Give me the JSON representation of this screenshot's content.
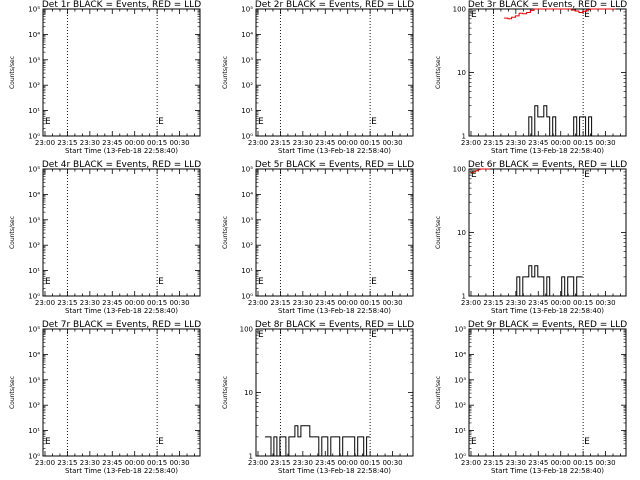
{
  "figure": {
    "x_ticks": [
      "23:00",
      "23:15",
      "23:30",
      "23:45",
      "00:00",
      "00:15",
      "00:30"
    ],
    "x_label": "Start Time (13-Feb-18 22:58:40)",
    "y_label": "Counts/sec",
    "log_ticks_wide": [
      "10⁰",
      "10¹",
      "10²",
      "10³",
      "10⁴",
      "10⁵"
    ],
    "log_ticks_narrow": [
      "1",
      "10",
      "100"
    ],
    "marker_char": "E",
    "colors": {
      "events": "#000000",
      "lld": "#e00000",
      "axes": "#000000"
    }
  },
  "chart_data": [
    {
      "type": "line",
      "title": "Det 1r BLACK = Events, RED = LLD",
      "yscale": "log",
      "ylim": [
        1,
        100000
      ],
      "series": []
    },
    {
      "type": "line",
      "title": "Det 2r BLACK = Events, RED = LLD",
      "yscale": "log",
      "ylim": [
        1,
        100000
      ],
      "series": []
    },
    {
      "type": "line",
      "title": "Det 3r BLACK = Events, RED = LLD",
      "yscale": "log",
      "ylim": [
        1,
        100
      ],
      "series": [
        {
          "color": "#e00000",
          "x_min": [
            23.5,
            26,
            28.5,
            31,
            33.5,
            36,
            38.5,
            41,
            43.5,
            46,
            48.5,
            51,
            53.5,
            56,
            58.5,
            61,
            63.5,
            66,
            68.5,
            71,
            73.5,
            76,
            78.5,
            81,
            83.5,
            86,
            88.5,
            91,
            93.5,
            96
          ],
          "y": [
            72,
            70,
            74,
            78,
            86,
            84,
            88,
            95,
            100,
            100,
            100,
            100,
            100,
            100,
            100,
            100,
            100,
            100,
            96,
            93,
            88,
            92,
            98,
            100,
            100,
            100,
            100,
            100,
            100,
            100
          ]
        },
        {
          "color": "#000000",
          "x_min": [
            38,
            40,
            42,
            44,
            46,
            48,
            50,
            52,
            54,
            56,
            58,
            60,
            62,
            64,
            66,
            68,
            70,
            72,
            74,
            76,
            78,
            80,
            82
          ],
          "y": [
            1,
            2,
            1,
            3,
            2,
            2,
            3,
            2,
            1,
            2,
            1,
            1,
            1,
            1,
            1,
            1,
            2,
            1,
            2,
            2,
            1,
            2,
            1
          ]
        }
      ]
    },
    {
      "type": "line",
      "title": "Det 4r BLACK = Events, RED = LLD",
      "yscale": "log",
      "ylim": [
        1,
        100000
      ],
      "series": []
    },
    {
      "type": "line",
      "title": "Det 5r BLACK = Events, RED = LLD",
      "yscale": "log",
      "ylim": [
        1,
        100000
      ],
      "series": []
    },
    {
      "type": "line",
      "title": "Det 6r BLACK = Events, RED = LLD",
      "yscale": "log",
      "ylim": [
        1,
        100
      ],
      "series": [
        {
          "color": "#e00000",
          "x_min": [
            1.5,
            3,
            4.5,
            6,
            7.5,
            9,
            10.5,
            12
          ],
          "y": [
            88,
            90,
            94,
            98,
            100,
            100,
            100,
            100
          ]
        },
        {
          "color": "#000000",
          "x_min": [
            30,
            32,
            34,
            36,
            38,
            40,
            42,
            44,
            46,
            48,
            50,
            52,
            54,
            56,
            58,
            60,
            62,
            64,
            66,
            68,
            70,
            72,
            74
          ],
          "y": [
            1,
            2,
            1,
            2,
            2,
            3,
            2,
            3,
            2,
            2,
            1,
            2,
            1,
            1,
            1,
            1,
            2,
            1,
            2,
            2,
            1,
            2,
            2
          ]
        }
      ]
    },
    {
      "type": "line",
      "title": "Det 7r BLACK = Events, RED = LLD",
      "yscale": "log",
      "ylim": [
        1,
        100000
      ],
      "series": []
    },
    {
      "type": "line",
      "title": "Det 8r BLACK = Events, RED = LLD",
      "yscale": "log",
      "ylim": [
        1,
        100
      ],
      "series": [
        {
          "color": "#000000",
          "x_min": [
            6,
            8,
            10,
            12,
            14,
            16,
            18,
            20,
            22,
            24,
            26,
            28,
            30,
            32,
            34,
            36,
            38,
            40,
            42,
            44,
            46,
            48,
            50,
            52,
            54,
            56,
            58,
            60,
            62,
            64,
            66,
            68,
            70,
            72,
            74
          ],
          "y": [
            2,
            2,
            1,
            2,
            1,
            2,
            2,
            1,
            2,
            2,
            3,
            2,
            3,
            3,
            3,
            2,
            2,
            2,
            1,
            2,
            2,
            1,
            2,
            2,
            2,
            1,
            2,
            2,
            2,
            2,
            1,
            2,
            2,
            1,
            2
          ]
        }
      ]
    },
    {
      "type": "line",
      "title": "Det 9r BLACK = Events, RED = LLD",
      "yscale": "log",
      "ylim": [
        1,
        100000
      ],
      "series": []
    }
  ]
}
